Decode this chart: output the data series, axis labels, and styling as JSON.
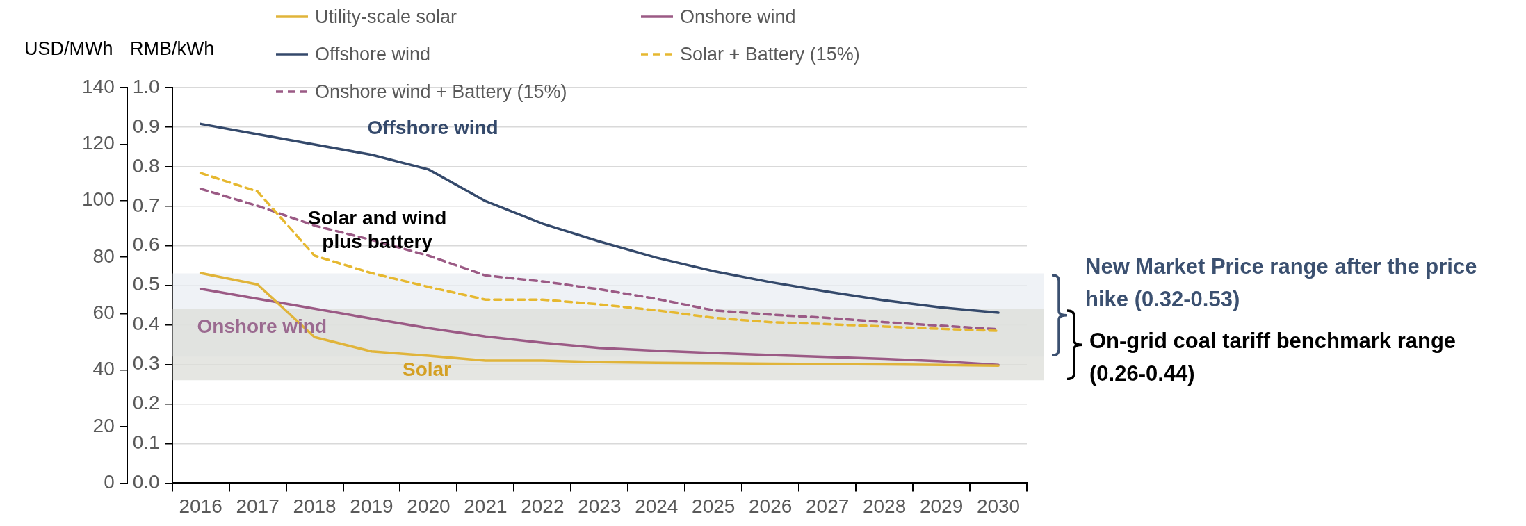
{
  "chart_data": {
    "type": "line",
    "categories": [
      "2016",
      "2017",
      "2018",
      "2019",
      "2020",
      "2021",
      "2022",
      "2023",
      "2024",
      "2025",
      "2026",
      "2027",
      "2028",
      "2029",
      "2030"
    ],
    "series": [
      {
        "name": "Utility-scale solar",
        "color": "#e0b43a",
        "values": [
          0.531,
          0.502,
          0.369,
          0.333,
          0.322,
          0.31,
          0.31,
          0.306,
          0.304,
          0.303,
          0.302,
          0.301,
          0.3,
          0.299,
          0.297
        ]
      },
      {
        "name": "Onshore wind",
        "color": "#9b5a85",
        "values": [
          0.491,
          0.466,
          0.441,
          0.416,
          0.392,
          0.371,
          0.355,
          0.342,
          0.335,
          0.329,
          0.324,
          0.319,
          0.314,
          0.308,
          0.299
        ]
      },
      {
        "name": "Offshore wind",
        "color": "#34496b",
        "values": [
          0.908,
          0.882,
          0.856,
          0.83,
          0.793,
          0.713,
          0.656,
          0.611,
          0.57,
          0.536,
          0.508,
          0.484,
          0.462,
          0.444,
          0.431
        ]
      },
      {
        "name": "Solar + Battery (15%)",
        "color": "#e6b830",
        "line_style": "dashed",
        "values": [
          0.784,
          0.737,
          0.575,
          0.531,
          0.496,
          0.464,
          0.464,
          0.452,
          0.437,
          0.418,
          0.407,
          0.402,
          0.396,
          0.39,
          0.385
        ]
      },
      {
        "name": "Onshore wind + Battery (15%)",
        "color": "#9b5a85",
        "line_style": "dashed",
        "values": [
          0.744,
          0.701,
          0.651,
          0.615,
          0.575,
          0.525,
          0.51,
          0.49,
          0.466,
          0.437,
          0.426,
          0.418,
          0.407,
          0.398,
          0.389
        ]
      }
    ],
    "ylabel": "RMB/kWh",
    "ylim": [
      0,
      1.0
    ],
    "yticks": [
      {
        "value": 0,
        "label": "0.0"
      },
      {
        "value": 0.1,
        "label": "0.1"
      },
      {
        "value": 0.2,
        "label": "0.2"
      },
      {
        "value": 0.3,
        "label": "0.3"
      },
      {
        "value": 0.4,
        "label": "0.4"
      },
      {
        "value": 0.5,
        "label": "0.5"
      },
      {
        "value": 0.6,
        "label": "0.6"
      },
      {
        "value": 0.7,
        "label": "0.7"
      },
      {
        "value": 0.8,
        "label": "0.8"
      },
      {
        "value": 0.9,
        "label": "0.9"
      },
      {
        "value": 1.0,
        "label": "1.0"
      }
    ],
    "y2label": "USD/MWh",
    "y2lim": [
      0,
      140
    ],
    "y2ticks": [
      0,
      20,
      40,
      60,
      80,
      100,
      120,
      140
    ],
    "bands": [
      {
        "axis": "y",
        "from": 0.32,
        "to": 0.53,
        "label": "New Market Price range after the price hike (0.32-0.53)",
        "color": "#e9edf3"
      },
      {
        "axis": "y",
        "from": 0.26,
        "to": 0.44,
        "label": "On-grid coal tariff benchmark range (0.26-0.44)",
        "color": "#dcddd8"
      }
    ],
    "annotations": [
      "Offshore wind",
      "Solar and wind plus battery",
      "Onshore wind",
      "Solar"
    ],
    "grid": "y",
    "legend": "top",
    "marker": "none"
  }
}
